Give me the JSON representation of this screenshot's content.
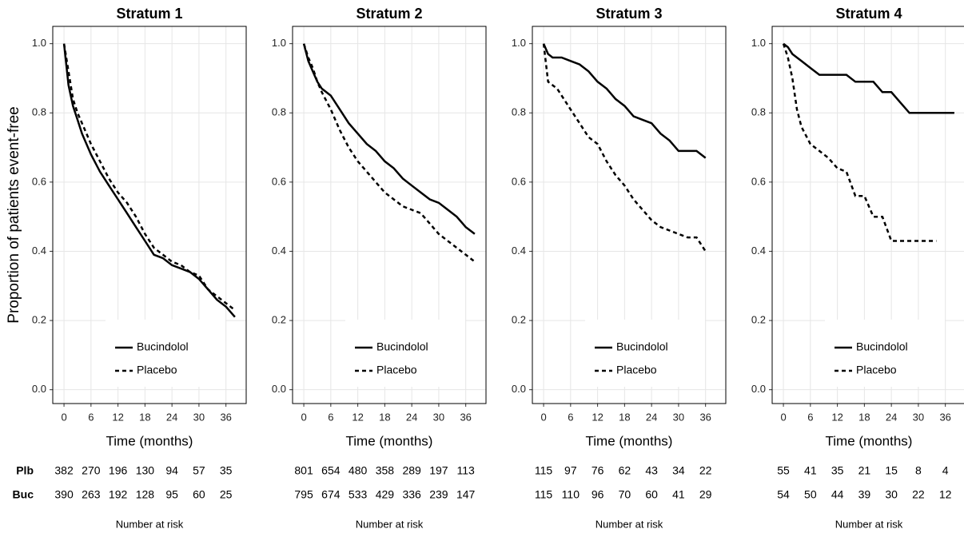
{
  "chart_data": [
    {
      "type": "line",
      "title": "Stratum 1",
      "ylabel": "Proportion of patients event-free",
      "xlabel": "Time (months)",
      "x": [
        0,
        1,
        2,
        3,
        4,
        6,
        8,
        10,
        12,
        14,
        16,
        18,
        20,
        22,
        24,
        26,
        28,
        30,
        32,
        34,
        36,
        38
      ],
      "series": [
        {
          "name": "Bucindolol",
          "color": "#000000",
          "dash": false,
          "values": [
            1.0,
            0.88,
            0.82,
            0.78,
            0.74,
            0.68,
            0.63,
            0.59,
            0.55,
            0.51,
            0.47,
            0.43,
            0.39,
            0.38,
            0.36,
            0.35,
            0.34,
            0.32,
            0.29,
            0.26,
            0.24,
            0.21
          ]
        },
        {
          "name": "Placebo",
          "color": "#000000",
          "dash": true,
          "values": [
            1.0,
            0.92,
            0.84,
            0.8,
            0.77,
            0.71,
            0.66,
            0.61,
            0.57,
            0.54,
            0.5,
            0.45,
            0.41,
            0.39,
            0.37,
            0.36,
            0.34,
            0.33,
            0.29,
            0.27,
            0.25,
            0.23
          ]
        }
      ],
      "xlim": [
        -2.5,
        40.5
      ],
      "ylim": [
        -0.04,
        1.05
      ],
      "xticks": [
        0,
        6,
        12,
        18,
        24,
        30,
        36
      ],
      "yticks": [
        {
          "value": 0,
          "label": "0.0"
        },
        {
          "value": 0.2,
          "label": "0.2"
        },
        {
          "value": 0.4,
          "label": "0.4"
        },
        {
          "value": 0.6,
          "label": "0.6"
        },
        {
          "value": 0.8,
          "label": "0.8"
        },
        {
          "value": 1,
          "label": "1.0"
        }
      ],
      "grid": true,
      "legend": "bottom",
      "risk_table": {
        "title": "Number at risk",
        "rows": [
          {
            "label": "Plb",
            "values": [
              382,
              270,
              196,
              130,
              94,
              57,
              35
            ]
          },
          {
            "label": "Buc",
            "values": [
              390,
              263,
              192,
              128,
              95,
              60,
              25
            ]
          }
        ]
      }
    },
    {
      "type": "line",
      "title": "Stratum 2",
      "xlabel": "Time (months)",
      "x": [
        0,
        1,
        2,
        3,
        4,
        6,
        8,
        10,
        12,
        14,
        16,
        18,
        20,
        22,
        24,
        26,
        28,
        30,
        32,
        34,
        36,
        38
      ],
      "series": [
        {
          "name": "Bucindolol",
          "color": "#000000",
          "dash": false,
          "values": [
            1.0,
            0.95,
            0.92,
            0.89,
            0.87,
            0.85,
            0.81,
            0.77,
            0.74,
            0.71,
            0.69,
            0.66,
            0.64,
            0.61,
            0.59,
            0.57,
            0.55,
            0.54,
            0.52,
            0.5,
            0.47,
            0.45
          ]
        },
        {
          "name": "Placebo",
          "color": "#000000",
          "dash": true,
          "values": [
            1.0,
            0.96,
            0.93,
            0.89,
            0.86,
            0.81,
            0.75,
            0.7,
            0.66,
            0.63,
            0.6,
            0.57,
            0.55,
            0.53,
            0.52,
            0.51,
            0.48,
            0.45,
            0.43,
            0.41,
            0.39,
            0.37
          ]
        }
      ],
      "xlim": [
        -2.5,
        40.5
      ],
      "ylim": [
        -0.04,
        1.05
      ],
      "xticks": [
        0,
        6,
        12,
        18,
        24,
        30,
        36
      ],
      "yticks": [
        {
          "value": 0,
          "label": "0.0"
        },
        {
          "value": 0.2,
          "label": "0.2"
        },
        {
          "value": 0.4,
          "label": "0.4"
        },
        {
          "value": 0.6,
          "label": "0.6"
        },
        {
          "value": 0.8,
          "label": "0.8"
        },
        {
          "value": 1,
          "label": "1.0"
        }
      ],
      "grid": true,
      "legend": "bottom",
      "risk_table": {
        "title": "Number at risk",
        "rows": [
          {
            "values": [
              801,
              654,
              480,
              358,
              289,
              197,
              113
            ]
          },
          {
            "values": [
              795,
              674,
              533,
              429,
              336,
              239,
              147
            ]
          }
        ]
      }
    },
    {
      "type": "line",
      "title": "Stratum 3",
      "xlabel": "Time (months)",
      "x": [
        0,
        1,
        2,
        3,
        4,
        6,
        8,
        10,
        12,
        14,
        16,
        18,
        20,
        22,
        24,
        26,
        28,
        30,
        32,
        34,
        36,
        38
      ],
      "series": [
        {
          "name": "Bucindolol",
          "color": "#000000",
          "dash": false,
          "values": [
            1.0,
            0.97,
            0.96,
            0.96,
            0.96,
            0.95,
            0.94,
            0.92,
            0.89,
            0.87,
            0.84,
            0.82,
            0.79,
            0.78,
            0.77,
            0.74,
            0.72,
            0.69,
            0.69,
            0.69,
            0.67,
            null
          ]
        },
        {
          "name": "Placebo",
          "color": "#000000",
          "dash": true,
          "values": [
            1.0,
            0.89,
            0.88,
            0.87,
            0.85,
            0.81,
            0.77,
            0.73,
            0.71,
            0.66,
            0.62,
            0.59,
            0.55,
            0.52,
            0.49,
            0.47,
            0.46,
            0.45,
            0.44,
            0.44,
            0.4,
            null
          ]
        }
      ],
      "xlim": [
        -2.5,
        40.5
      ],
      "ylim": [
        -0.04,
        1.05
      ],
      "xticks": [
        0,
        6,
        12,
        18,
        24,
        30,
        36
      ],
      "yticks": [
        {
          "value": 0,
          "label": "0.0"
        },
        {
          "value": 0.2,
          "label": "0.2"
        },
        {
          "value": 0.4,
          "label": "0.4"
        },
        {
          "value": 0.6,
          "label": "0.6"
        },
        {
          "value": 0.8,
          "label": "0.8"
        },
        {
          "value": 1,
          "label": "1.0"
        }
      ],
      "grid": true,
      "legend": "bottom",
      "risk_table": {
        "title": "Number at risk",
        "rows": [
          {
            "values": [
              115,
              97,
              76,
              62,
              43,
              34,
              22
            ]
          },
          {
            "values": [
              115,
              110,
              96,
              70,
              60,
              41,
              29
            ]
          }
        ]
      }
    },
    {
      "type": "line",
      "title": "Stratum 4",
      "xlabel": "Time (months)",
      "x": [
        0,
        1,
        2,
        3,
        4,
        6,
        8,
        10,
        12,
        14,
        16,
        18,
        20,
        22,
        24,
        26,
        28,
        30,
        32,
        34,
        36,
        38
      ],
      "series": [
        {
          "name": "Bucindolol",
          "color": "#000000",
          "dash": false,
          "values": [
            1.0,
            0.99,
            0.97,
            0.96,
            0.95,
            0.93,
            0.91,
            0.91,
            0.91,
            0.91,
            0.89,
            0.89,
            0.89,
            0.86,
            0.86,
            0.83,
            0.8,
            0.8,
            0.8,
            0.8,
            0.8,
            0.8
          ]
        },
        {
          "name": "Placebo",
          "color": "#000000",
          "dash": true,
          "values": [
            1.0,
            0.96,
            0.9,
            0.81,
            0.76,
            0.71,
            0.69,
            0.67,
            0.64,
            0.63,
            0.56,
            0.56,
            0.5,
            0.5,
            0.43,
            0.43,
            0.43,
            0.43,
            0.43,
            0.43,
            null,
            null
          ]
        }
      ],
      "xlim": [
        -2.5,
        40.5
      ],
      "ylim": [
        -0.04,
        1.05
      ],
      "xticks": [
        0,
        6,
        12,
        18,
        24,
        30,
        36
      ],
      "yticks": [
        {
          "value": 0,
          "label": "0.0"
        },
        {
          "value": 0.2,
          "label": "0.2"
        },
        {
          "value": 0.4,
          "label": "0.4"
        },
        {
          "value": 0.6,
          "label": "0.6"
        },
        {
          "value": 0.8,
          "label": "0.8"
        },
        {
          "value": 1,
          "label": "1.0"
        }
      ],
      "grid": true,
      "legend": "bottom",
      "risk_table": {
        "title": "Number at risk",
        "rows": [
          {
            "values": [
              55,
              41,
              35,
              21,
              15,
              8,
              4
            ]
          },
          {
            "values": [
              54,
              50,
              44,
              39,
              30,
              22,
              12
            ]
          }
        ]
      }
    }
  ]
}
